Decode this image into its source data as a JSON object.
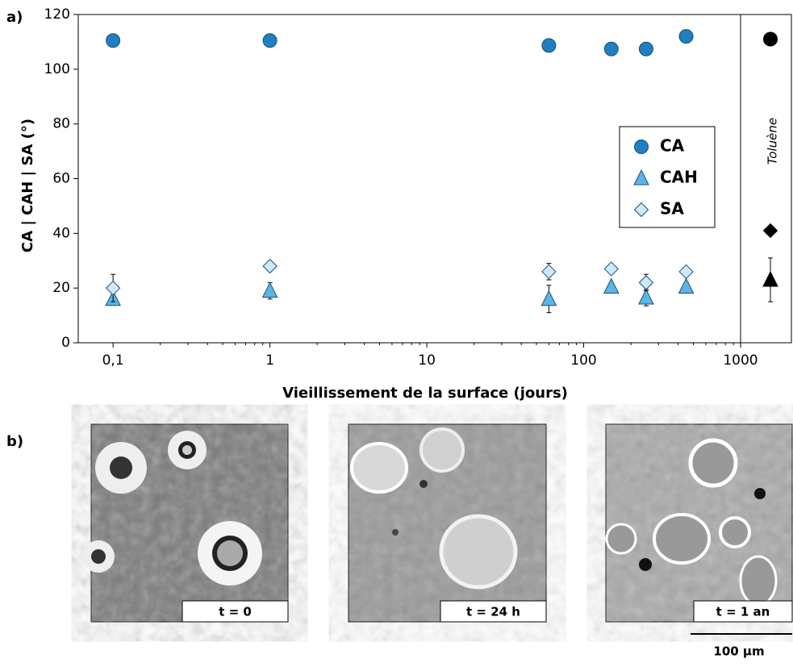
{
  "chart_data": {
    "type": "scatter",
    "panel_label": "a)",
    "xlabel": "Vieillissement de la surface (jours)",
    "ylabel": "CA | CAH | SA (°)",
    "log_x": true,
    "xlim": [
      0.06,
      1000
    ],
    "ylim": [
      0,
      120
    ],
    "xticks": [
      {
        "value": 0.1,
        "label": "0,1"
      },
      1,
      10,
      100,
      1000
    ],
    "yticks": [
      0,
      20,
      40,
      60,
      80,
      100,
      120
    ],
    "x": [
      0.1,
      1,
      60,
      150,
      250,
      450
    ],
    "series": [
      {
        "name": "CA",
        "color": "#1f7fc1",
        "marker": "circle",
        "values": [
          110.5,
          110.5,
          108.7,
          107.4,
          107.4,
          112
        ],
        "errors": [
          null,
          null,
          null,
          null,
          null,
          null
        ]
      },
      {
        "name": "CAH",
        "color": "#5bb6e6",
        "marker": "triangle",
        "values": [
          16,
          19,
          16,
          20.5,
          16.5,
          20.5
        ],
        "errors": [
          null,
          3,
          5,
          null,
          3,
          null
        ]
      },
      {
        "name": "SA",
        "color": "#cfe9f8",
        "marker": "diamond",
        "values": [
          20,
          28,
          26,
          27,
          22,
          26
        ],
        "errors": [
          5,
          null,
          3,
          null,
          3,
          null
        ]
      }
    ],
    "legend": "right",
    "reference": {
      "label": "Toluène",
      "color": "#000000",
      "values": [
        111,
        23,
        41
      ],
      "errors": [
        null,
        8,
        null
      ]
    }
  },
  "images": {
    "panel_label": "b)",
    "labels": [
      "t = 0",
      "t = 24 h",
      "t = 1 an"
    ],
    "scale_bar": "100 µm"
  }
}
